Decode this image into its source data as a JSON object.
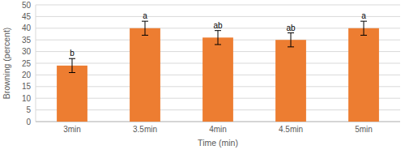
{
  "chart_data": {
    "type": "bar",
    "x_label": "Time (min)",
    "y_label": "Browning (percent)",
    "categories": [
      "3min",
      "3.5min",
      "4min",
      "4.5min",
      "5min"
    ],
    "values": [
      24,
      40,
      36,
      35,
      40
    ],
    "errors": [
      3,
      3,
      3,
      3,
      3
    ],
    "annotations": [
      "b",
      "a",
      "ab",
      "ab",
      "a"
    ],
    "color": "#ed7d31",
    "ylim": [
      0,
      50
    ],
    "yticks": [
      0,
      5,
      10,
      15,
      20,
      25,
      30,
      35,
      40,
      45,
      50
    ],
    "grid": true
  }
}
